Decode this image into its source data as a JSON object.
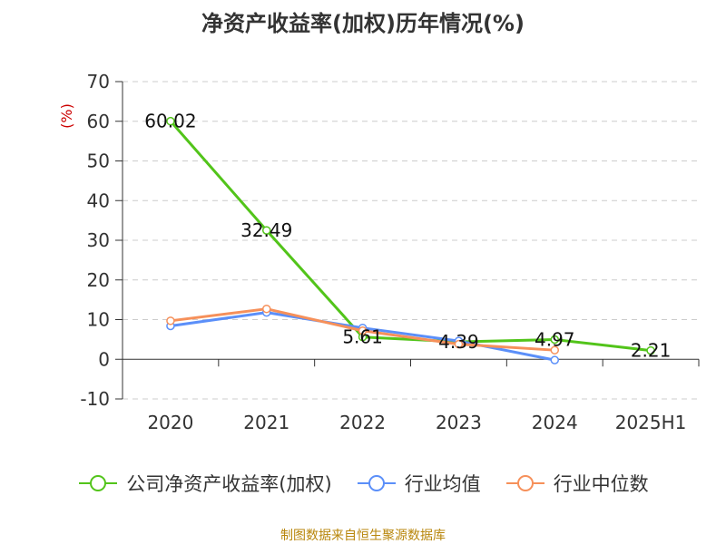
{
  "title": "净资产收益率(加权)历年情况(%)",
  "source": "制图数据来自恒生聚源数据库",
  "chart_data": {
    "type": "line",
    "ylabel": "(%)",
    "ylim": [
      -10,
      70
    ],
    "yticks": [
      -10,
      0,
      10,
      20,
      30,
      40,
      50,
      60,
      70
    ],
    "categories": [
      "2020",
      "2021",
      "2022",
      "2023",
      "2024",
      "2025H1"
    ],
    "grid": true,
    "legend_position": "bottom",
    "series": [
      {
        "name": "公司净资产收益率(加权)",
        "color": "#52c41a",
        "values": [
          60.02,
          32.49,
          5.61,
          4.39,
          4.97,
          2.21
        ],
        "labels": [
          "60.02",
          "32.49",
          "5.61",
          "4.39",
          "4.97",
          "2.21"
        ]
      },
      {
        "name": "行业均值",
        "color": "#5b8ff9",
        "values": [
          8.4,
          11.8,
          7.9,
          4.6,
          -0.2,
          null
        ]
      },
      {
        "name": "行业中位数",
        "color": "#f6905a",
        "values": [
          9.7,
          12.7,
          7.2,
          3.8,
          2.3,
          null
        ]
      }
    ]
  }
}
